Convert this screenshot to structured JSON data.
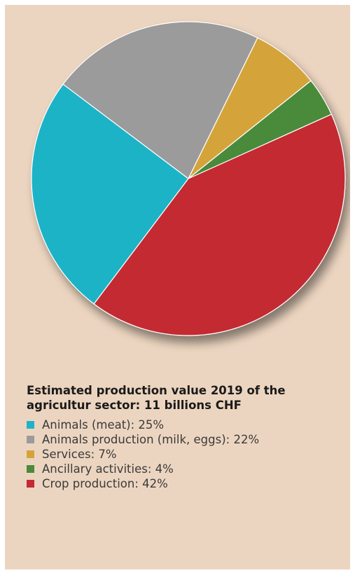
{
  "chart_data": {
    "type": "pie",
    "title": "Estimated production value 2019 of the agricultur sector: 11 billions CHF",
    "slices": [
      {
        "label": "Animals (meat): 25%",
        "value": 25,
        "color": "#1eb3c7"
      },
      {
        "label": "Animals production (milk, eggs): 22%",
        "value": 22,
        "color": "#9b9b9b"
      },
      {
        "label": "Services: 7%",
        "value": 7,
        "color": "#d4a43a"
      },
      {
        "label": "Ancillary activities: 4%",
        "value": 4,
        "color": "#4a8a3a"
      },
      {
        "label": "Crop production: 42%",
        "value": 42,
        "color": "#c42a33"
      }
    ],
    "legend": {
      "placement": "bottom"
    }
  }
}
